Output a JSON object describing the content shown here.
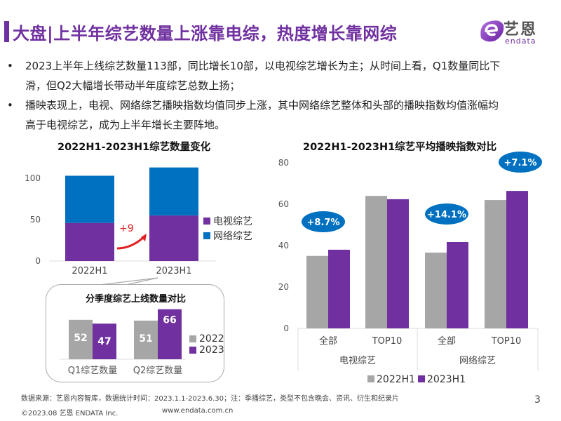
{
  "header": {
    "title": "大盘|上半年综艺数量上涨靠电综，热度增长靠网综",
    "logo_cn": "艺恩",
    "logo_en": "endata",
    "accent_color": "#7030a0"
  },
  "bullets": [
    {
      "marker": "•",
      "lines": [
        "2023上半年上线综艺数量113部，同比增长10部，以电视综艺增长为主；从时间上看，Q1数量同比下",
        "滑，但Q2大幅增长带动半年度综艺总数上扬；"
      ]
    },
    {
      "marker": "•",
      "lines": [
        "播映表现上，电视、网络综艺播映指数均值同步上涨，其中网络综艺整体和头部的播映指数均值涨幅均",
        "高于电视综艺，成为上半年增长主要阵地。"
      ]
    }
  ],
  "chart_data": [
    {
      "type": "bar",
      "stacked": true,
      "title": "2022H1-2023H1综艺数量变化",
      "categories": [
        "2022H1",
        "2023H1"
      ],
      "series": [
        {
          "name": "电视综艺",
          "values": [
            46,
            55
          ],
          "color": "#7030a0"
        },
        {
          "name": "网络综艺",
          "values": [
            57,
            58
          ],
          "color": "#0070c0"
        }
      ],
      "yticks": [
        "0",
        "50",
        "100"
      ],
      "ylim": [
        0,
        120
      ],
      "annotation": "+9",
      "annotation_color": "#e02020",
      "legend": "right"
    },
    {
      "type": "bar",
      "title": "分季度综艺上线数量对比",
      "categories": [
        "Q1综艺数量",
        "Q2综艺数量"
      ],
      "series": [
        {
          "name": "2022",
          "values": [
            52,
            51
          ],
          "color": "#a6a6a6"
        },
        {
          "name": "2023",
          "values": [
            47,
            66
          ],
          "color": "#7030a0"
        }
      ],
      "data_labels": [
        [
          "52",
          "51"
        ],
        [
          "47",
          "66"
        ]
      ],
      "ylim": [
        0,
        70
      ],
      "legend": "right"
    },
    {
      "type": "bar",
      "title": "2022H1-2023H1综艺平均播映指数对比",
      "categories": [
        "全部",
        "TOP10",
        "全部",
        "TOP10"
      ],
      "groups": [
        "电视综艺",
        "网络综艺"
      ],
      "series": [
        {
          "name": "2022H1",
          "values": [
            35.0,
            64.0,
            36.6,
            62.0
          ],
          "color": "#a6a6a6"
        },
        {
          "name": "2023H1",
          "values": [
            38.0,
            62.4,
            41.7,
            66.4
          ],
          "color": "#7030a0"
        }
      ],
      "yticks": [
        "0",
        "20",
        "40",
        "60",
        "80"
      ],
      "ylim": [
        0,
        80
      ],
      "growth_badges": [
        {
          "label": "+8.7%",
          "target": "电视综艺-全部"
        },
        {
          "label": "+14.1%",
          "target": "网络综艺-全部"
        },
        {
          "label": "+7.1%",
          "target": "网络综艺-TOP10"
        }
      ],
      "badge_color": "#0070c0",
      "legend": "bottom"
    }
  ],
  "footer": {
    "source": "数据来源：艺恩内容智库，数据统计时间：2023.1.1-2023.6.30；注：季播综艺，类型不包含晚会、资讯、衍生和纪录片",
    "copyright": "©2023.08 艺恩 ENDATA Inc.",
    "url": "www.endata.com.cn",
    "page_number": "3"
  }
}
